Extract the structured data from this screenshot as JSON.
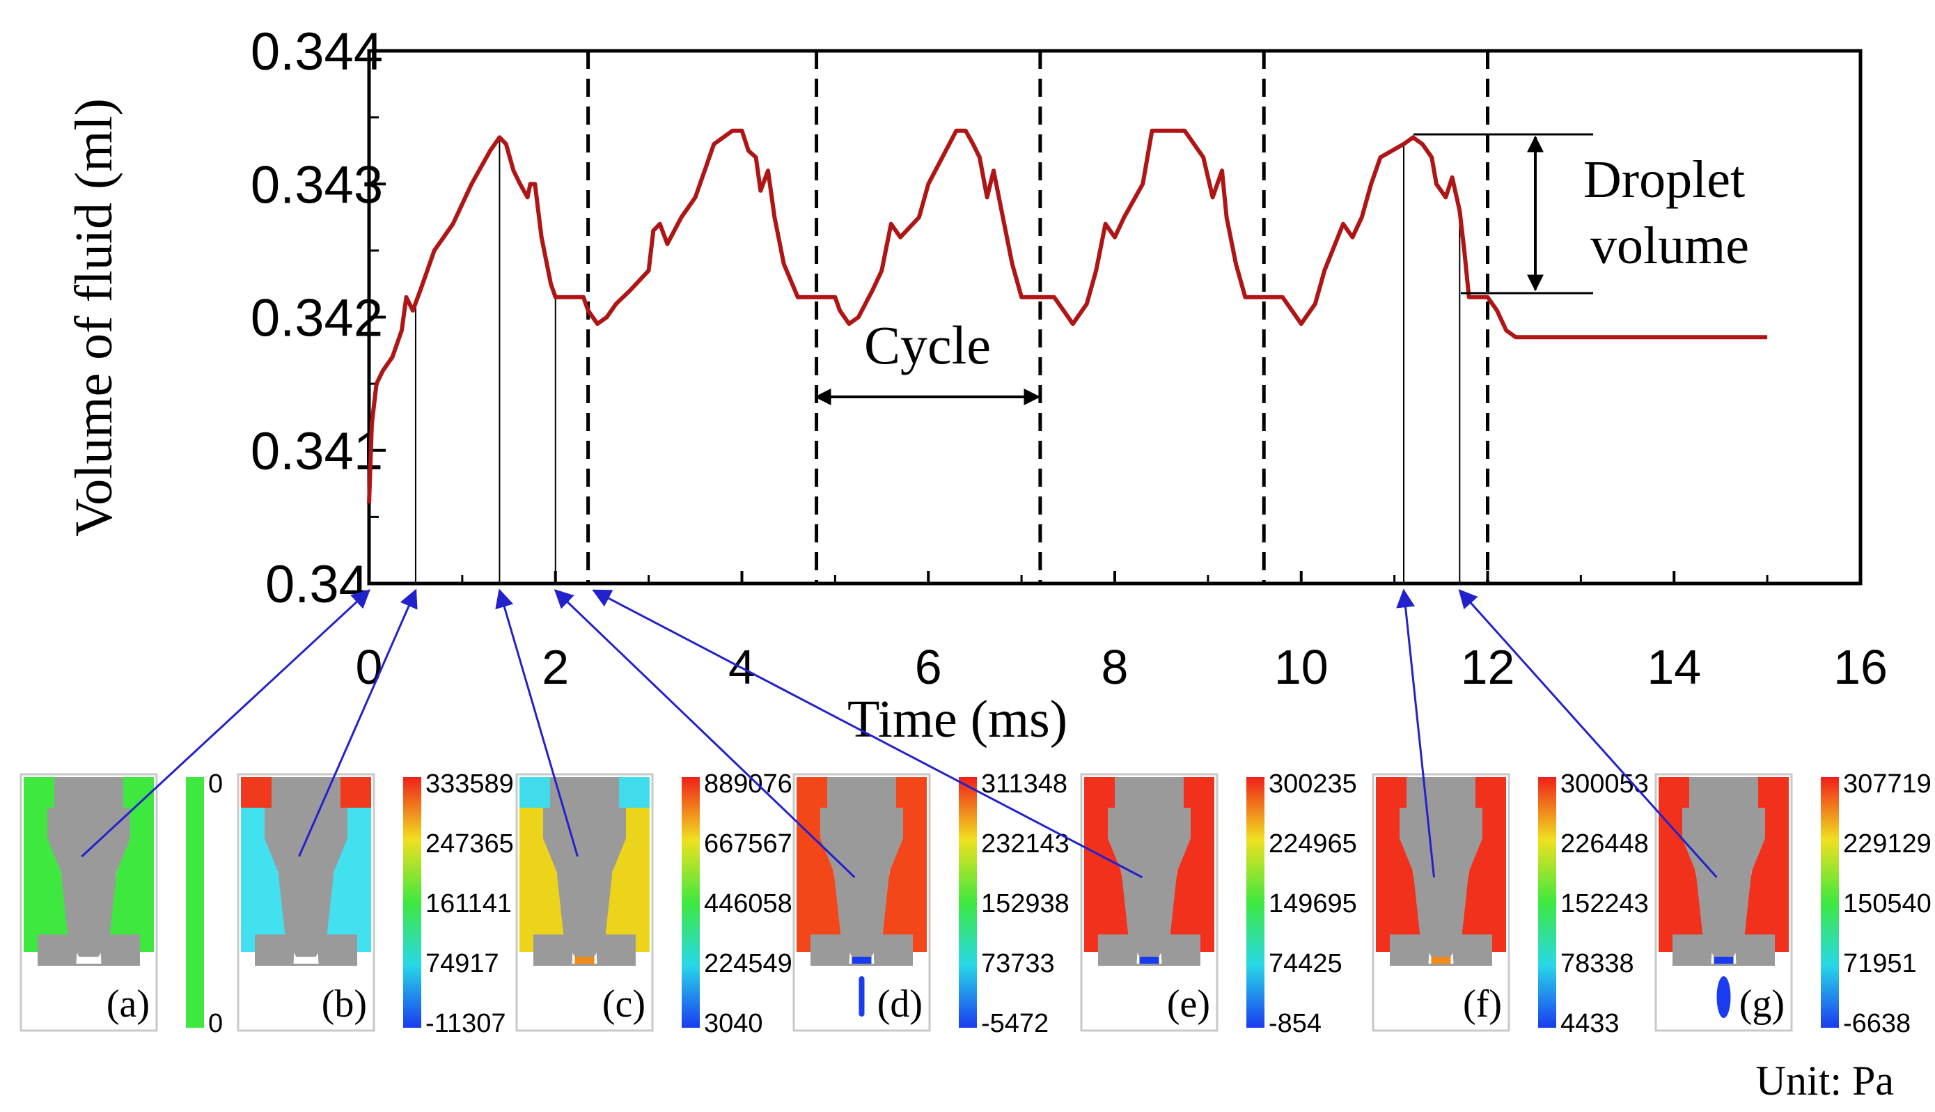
{
  "chart_data": {
    "type": "line",
    "xlabel": "Time (ms)",
    "ylabel": "Volume of fluid  (ml)",
    "xlim": [
      0,
      16
    ],
    "ylim": [
      0.34,
      0.344
    ],
    "x_ticks": [
      "0",
      "2",
      "4",
      "6",
      "8",
      "10",
      "12",
      "14",
      "16"
    ],
    "y_ticks": [
      "0.34",
      "0.341",
      "0.342",
      "0.343",
      "0.344"
    ],
    "series": [
      {
        "name": "Volume of fluid",
        "color": "#b01515",
        "x": [
          0,
          0.03,
          0.08,
          0.15,
          0.25,
          0.35,
          0.4,
          0.47,
          0.55,
          0.7,
          0.9,
          1.1,
          1.3,
          1.4,
          1.47,
          1.55,
          1.62,
          1.7,
          1.73,
          1.78,
          1.85,
          1.95,
          2.0,
          2.3,
          2.35,
          2.45,
          2.55,
          2.65,
          2.8,
          3.0,
          3.05,
          3.12,
          3.2,
          3.35,
          3.5,
          3.6,
          3.7,
          3.9,
          4.0,
          4.07,
          4.15,
          4.2,
          4.28,
          4.35,
          4.45,
          4.6,
          4.7,
          4.8,
          4.9,
          5.0,
          5.05,
          5.15,
          5.25,
          5.4,
          5.5,
          5.6,
          5.7,
          5.9,
          6.0,
          6.3,
          6.4,
          6.48,
          6.55,
          6.63,
          6.7,
          6.8,
          6.9,
          7.0,
          7.1,
          7.25,
          7.35,
          7.45,
          7.55,
          7.7,
          7.8,
          7.9,
          8.0,
          8.1,
          8.3,
          8.4,
          8.75,
          8.85,
          8.95,
          9.05,
          9.15,
          9.2,
          9.3,
          9.4,
          9.55,
          9.6,
          9.7,
          9.8,
          9.9,
          10.0,
          10.05,
          10.15,
          10.25,
          10.45,
          10.55,
          10.65,
          10.75,
          10.85,
          11.1,
          11.2,
          11.3,
          11.4,
          11.45,
          11.55,
          11.62,
          11.7,
          11.75,
          11.8,
          11.9,
          12.0,
          12.1,
          12.2,
          12.3,
          12.5,
          13.0,
          14.0,
          15.0
        ],
        "y": [
          0.3406,
          0.3412,
          0.3415,
          0.3416,
          0.3417,
          0.3419,
          0.34215,
          0.34205,
          0.3422,
          0.3425,
          0.3427,
          0.343,
          0.34325,
          0.34335,
          0.3433,
          0.3431,
          0.343,
          0.3429,
          0.343,
          0.343,
          0.3426,
          0.34225,
          0.34215,
          0.34215,
          0.34205,
          0.34195,
          0.342,
          0.3421,
          0.3422,
          0.34235,
          0.34265,
          0.3427,
          0.34255,
          0.34275,
          0.3429,
          0.3431,
          0.3433,
          0.3434,
          0.3434,
          0.34325,
          0.3432,
          0.34295,
          0.3431,
          0.34275,
          0.3424,
          0.34215,
          0.34215,
          0.34215,
          0.34215,
          0.34215,
          0.34205,
          0.34195,
          0.342,
          0.3422,
          0.34235,
          0.3427,
          0.3426,
          0.34275,
          0.343,
          0.3434,
          0.3434,
          0.3433,
          0.3432,
          0.3429,
          0.3431,
          0.34275,
          0.3424,
          0.34215,
          0.34215,
          0.34215,
          0.34215,
          0.34205,
          0.34195,
          0.3421,
          0.34235,
          0.3427,
          0.3426,
          0.34275,
          0.343,
          0.3434,
          0.3434,
          0.3433,
          0.3432,
          0.3429,
          0.3431,
          0.34275,
          0.3424,
          0.34215,
          0.34215,
          0.34215,
          0.34215,
          0.34215,
          0.34205,
          0.34195,
          0.342,
          0.3421,
          0.34235,
          0.3427,
          0.3426,
          0.34275,
          0.343,
          0.3432,
          0.3433,
          0.34335,
          0.3433,
          0.3432,
          0.343,
          0.3429,
          0.34305,
          0.3428,
          0.3425,
          0.34215,
          0.34215,
          0.34215,
          0.34205,
          0.3419,
          0.34185,
          0.34185,
          0.34185,
          0.34185,
          0.34185
        ]
      }
    ],
    "cycle_markers": [
      2.35,
      4.8,
      7.2,
      9.6,
      12.0
    ],
    "sample_points": [
      {
        "label": "(a)",
        "t": 0
      },
      {
        "label": "(b)",
        "t": 0.5
      },
      {
        "label": "(c)",
        "t": 1.4
      },
      {
        "label": "(d)",
        "t": 2.0
      },
      {
        "label": "(e)",
        "t": 2.35
      },
      {
        "label": "(f)",
        "t": 11.1
      },
      {
        "label": "(g)",
        "t": 11.7
      }
    ],
    "annotations": {
      "cycle": "Cycle",
      "droplet_line1": "Droplet",
      "droplet_line2": "volume"
    }
  },
  "panels": [
    {
      "label": "(a)",
      "scale": [
        "0",
        "0"
      ],
      "fill": "#3ee83e",
      "top_fill": "#3ee83e",
      "tip": "white"
    },
    {
      "label": "(b)",
      "scale": [
        "333589",
        "247365",
        "161141",
        "74917",
        "-11307"
      ],
      "fill": "#43e0f0",
      "top_fill": "#f03a1e",
      "tip": "white"
    },
    {
      "label": "(c)",
      "scale": [
        "889076",
        "667567",
        "446058",
        "224549",
        "3040"
      ],
      "fill": "#ecd41a",
      "top_fill": "#40dcec",
      "tip": "orange"
    },
    {
      "label": "(d)",
      "scale": [
        "311348",
        "232143",
        "152938",
        "73733",
        "-5472"
      ],
      "fill": "#f3471a",
      "top_fill": "#f3471a",
      "tip": "stream"
    },
    {
      "label": "(e)",
      "scale": [
        "300235",
        "224965",
        "149695",
        "74425",
        "-854"
      ],
      "fill": "#f2311c",
      "top_fill": "#f2311c",
      "tip": "blue"
    },
    {
      "label": "(f)",
      "scale": [
        "300053",
        "226448",
        "152243",
        "78338",
        "4433"
      ],
      "fill": "#f2311c",
      "top_fill": "#f2311c",
      "tip": "orange"
    },
    {
      "label": "(g)",
      "scale": [
        "307719",
        "229129",
        "150540",
        "71951",
        "-6638"
      ],
      "fill": "#f2311c",
      "top_fill": "#f2311c",
      "tip": "drop"
    }
  ],
  "unit_label": "Unit:  Pa",
  "colors": {
    "curve": "#b01515",
    "arrow": "#2222cc",
    "nozzle_gray": "#9a9a9a"
  }
}
